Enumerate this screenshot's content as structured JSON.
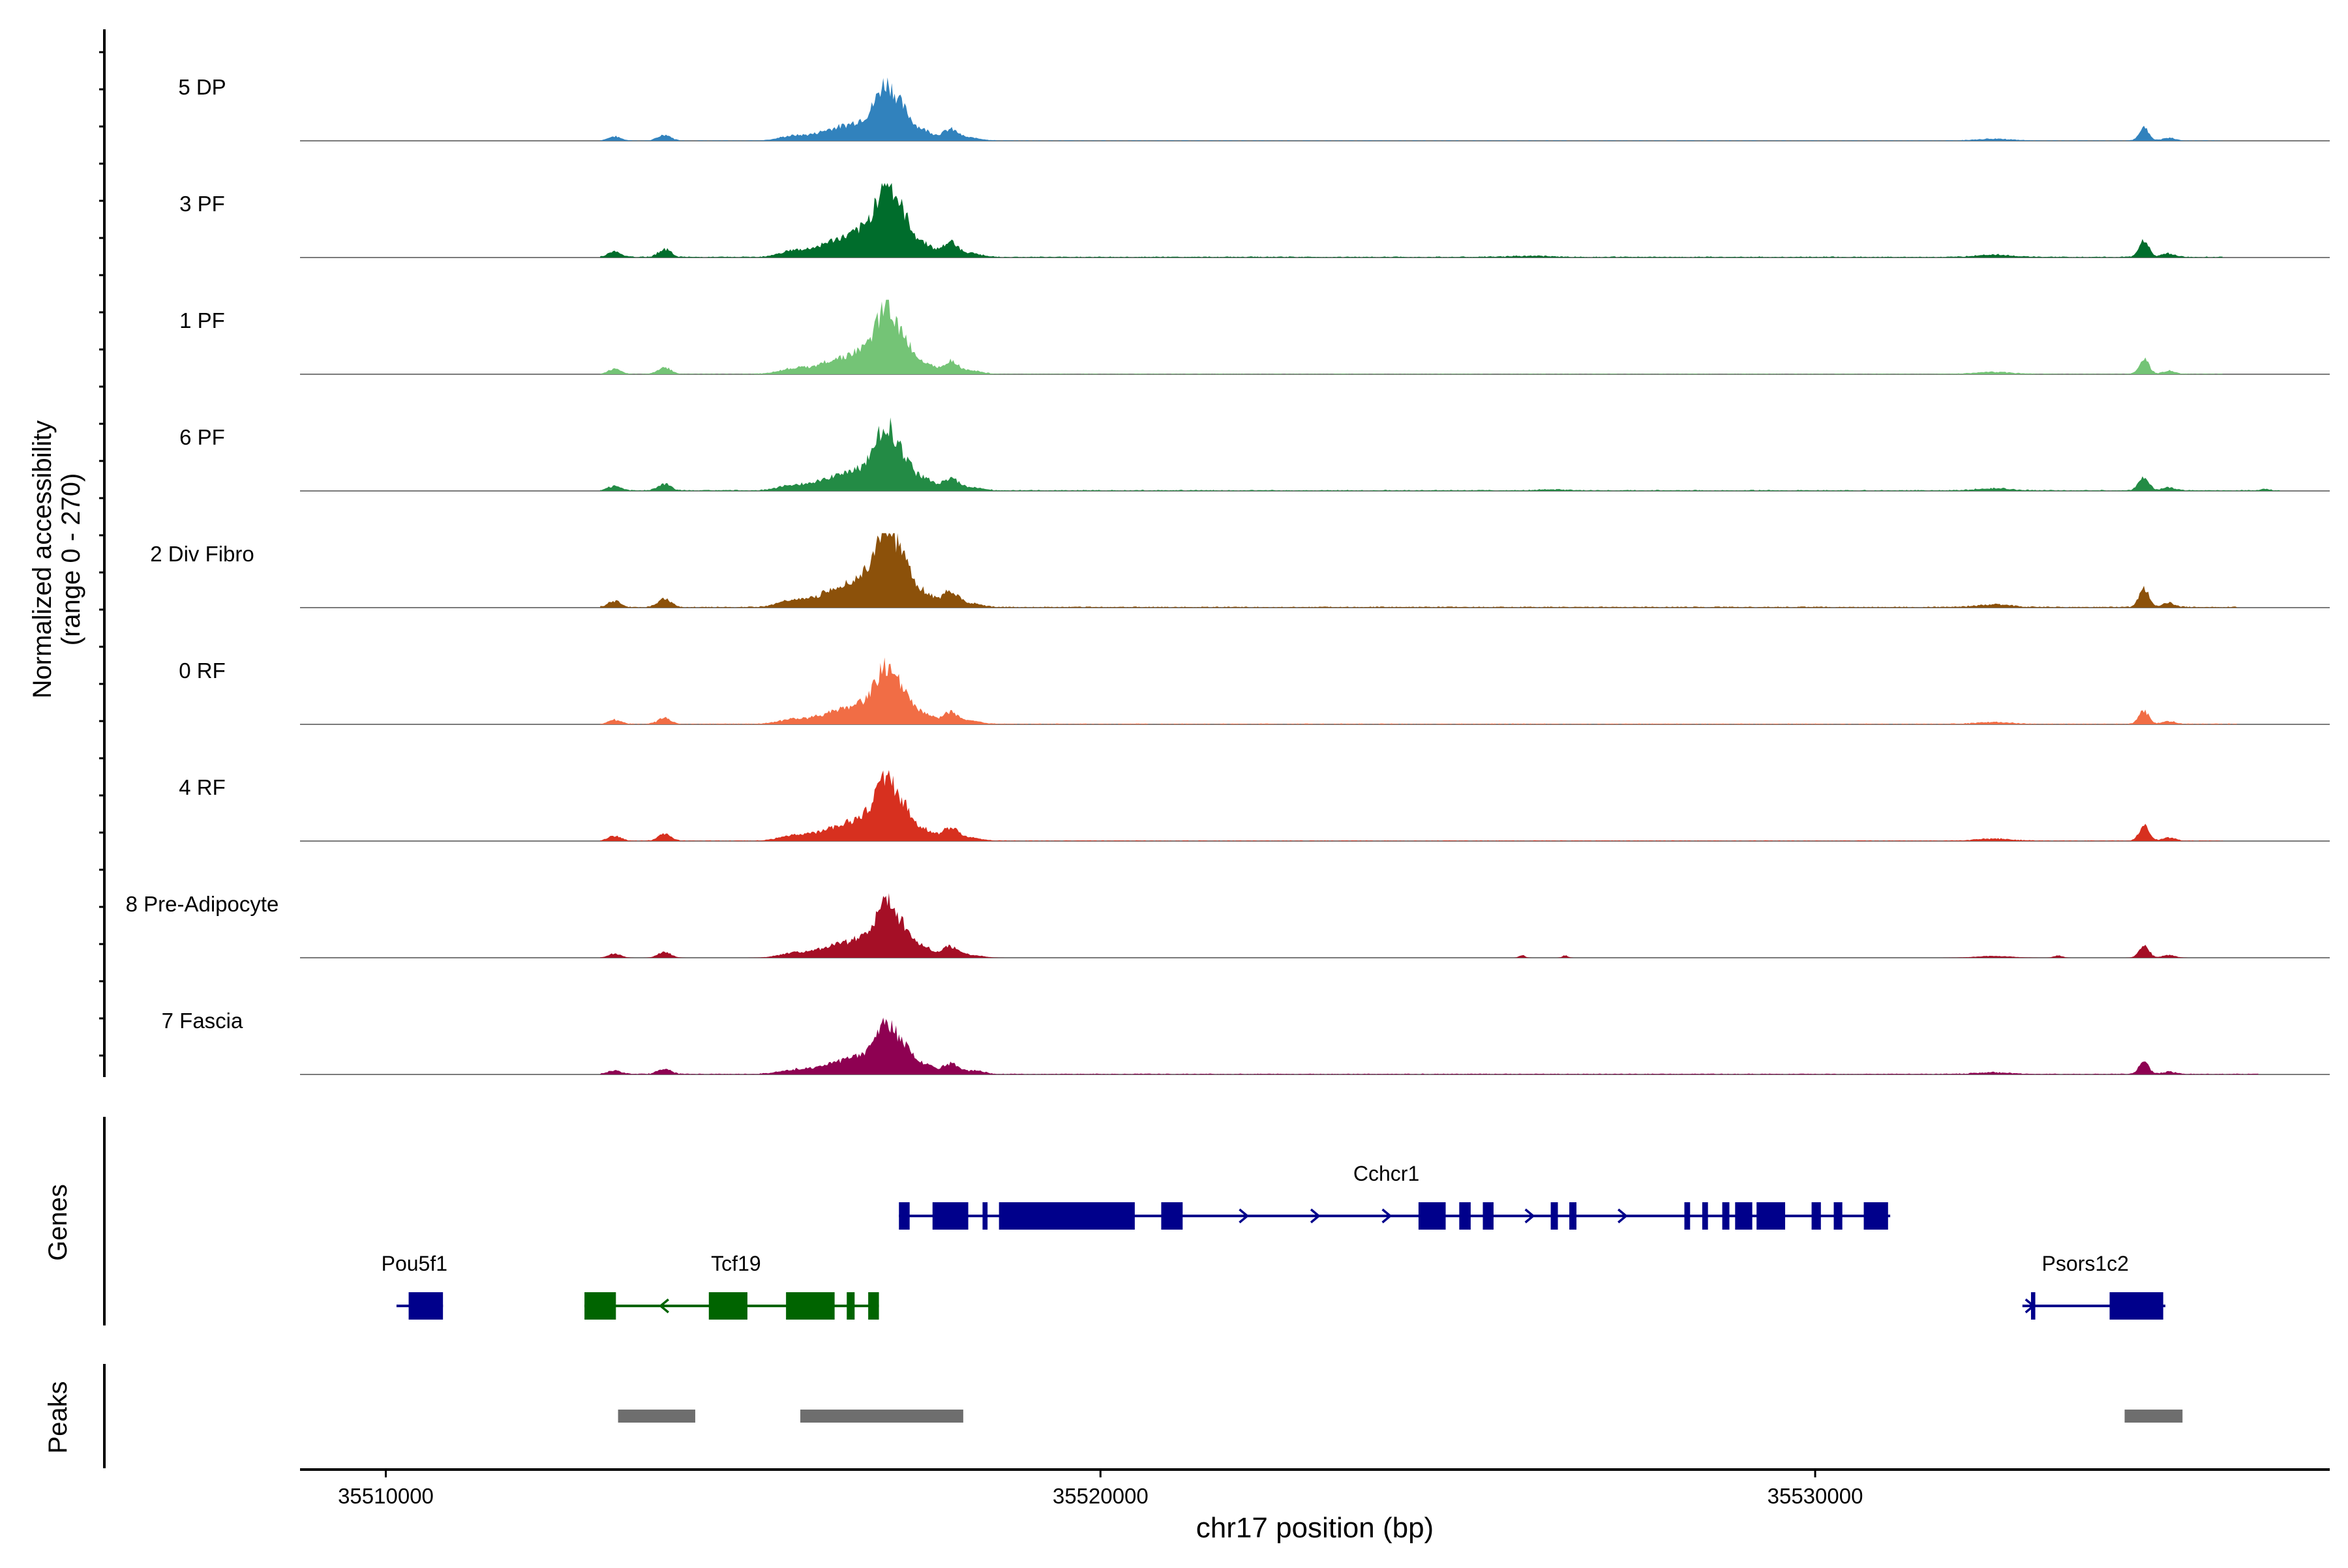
{
  "chart_data": {
    "type": "area",
    "title": "",
    "chromosome": "chr17",
    "xlabel": "chr17 position (bp)",
    "ylabel_line1": "Normalized accessibility",
    "ylabel_line2": "(range 0 - 270)",
    "ylim": [
      0,
      270
    ],
    "xlim": [
      35508800,
      35537200
    ],
    "x_ticks": [
      35510000,
      35520000,
      35530000
    ],
    "x_tick_labels": [
      "35510000",
      "35520000",
      "35530000"
    ],
    "genes_label": "Genes",
    "peaks_label": "Peaks",
    "tracks": [
      {
        "name": "5 DP",
        "color": "#3182BD",
        "scale": 0.62,
        "noise": 0.012,
        "extra_peaks": [],
        "tail_end": 35535700
      },
      {
        "name": "3 PF",
        "color": "#006D2C",
        "scale": 0.83,
        "noise": 0.018,
        "extra_peaks": [
          [
            35526000,
            0.02,
            300
          ]
        ],
        "tail_end": 35535700
      },
      {
        "name": "1 PF",
        "color": "#74C476",
        "scale": 0.72,
        "noise": 0.012,
        "extra_peaks": [],
        "tail_end": 35535700
      },
      {
        "name": "6 PF",
        "color": "#238B45",
        "scale": 0.7,
        "noise": 0.022,
        "extra_peaks": [
          [
            35536300,
            0.03,
            60
          ],
          [
            35526300,
            0.02,
            200
          ]
        ],
        "tail_end": 35536500
      },
      {
        "name": "2 Div Fibro",
        "color": "#8C510A",
        "scale": 0.92,
        "noise": 0.018,
        "extra_peaks": [],
        "tail_end": 35535900
      },
      {
        "name": "0 RF",
        "color": "#F16D45",
        "scale": 0.64,
        "noise": 0.018,
        "extra_peaks": [],
        "tail_end": 35535900
      },
      {
        "name": "4 RF",
        "color": "#D7301F",
        "scale": 0.71,
        "noise": 0.014,
        "extra_peaks": [],
        "tail_end": 35535700
      },
      {
        "name": "8 Pre-Adipocyte",
        "color": "#A50F26",
        "scale": 0.63,
        "noise": 0.0,
        "extra_peaks": [
          [
            35525900,
            0.06,
            40
          ],
          [
            35526500,
            0.05,
            40
          ],
          [
            35533400,
            0.05,
            60
          ]
        ],
        "tail_end": 35535300
      },
      {
        "name": "7 Fascia",
        "color": "#8E0152",
        "scale": 0.58,
        "noise": 0.022,
        "extra_peaks": [
          [
            35518300,
            0.04,
            80
          ]
        ],
        "tail_end": 35536200
      }
    ],
    "profile_peaks": [
      [
        35513200,
        0.09,
        90
      ],
      [
        35513900,
        0.13,
        90
      ],
      [
        35515700,
        0.1,
        200
      ],
      [
        35516300,
        0.26,
        250
      ],
      [
        35516750,
        0.4,
        200
      ],
      [
        35517000,
        1.0,
        130
      ],
      [
        35517250,
        0.55,
        130
      ],
      [
        35517550,
        0.2,
        120
      ],
      [
        35517900,
        0.24,
        110
      ],
      [
        35518200,
        0.06,
        150
      ],
      [
        35532500,
        0.04,
        250
      ],
      [
        35534600,
        0.28,
        70
      ],
      [
        35534950,
        0.06,
        90
      ]
    ],
    "genes": [
      {
        "name": "Cchcr1",
        "strand": "+",
        "color": "#00008B",
        "start": 35517180,
        "end": 35531050,
        "exons": [
          [
            35517180,
            35517330
          ],
          [
            35517650,
            35518150
          ],
          [
            35518350,
            35518420
          ],
          [
            35518580,
            35520480
          ],
          [
            35520850,
            35521150
          ],
          [
            35524450,
            35524830
          ],
          [
            35525020,
            35525180
          ],
          [
            35525350,
            35525500
          ],
          [
            35526300,
            35526400
          ],
          [
            35526560,
            35526660
          ],
          [
            35528170,
            35528250
          ],
          [
            35528420,
            35528500
          ],
          [
            35528700,
            35528800
          ],
          [
            35528880,
            35529120
          ],
          [
            35529180,
            35529580
          ],
          [
            35529950,
            35530080
          ],
          [
            35530260,
            35530380
          ],
          [
            35530680,
            35531020
          ]
        ],
        "arrows": [
          35522000,
          35523000,
          35524000,
          35526000,
          35527300
        ],
        "label_x": 35524000,
        "row": 1
      },
      {
        "name": "Pou5f1",
        "strand": "+",
        "color": "#00008B",
        "start": 35510150,
        "end": 35510800,
        "exons": [
          [
            35510320,
            35510800
          ]
        ],
        "arrows": [],
        "label_x": 35510400,
        "row": 2
      },
      {
        "name": "Tcf19",
        "strand": "-",
        "color": "#006400",
        "start": 35512780,
        "end": 35516900,
        "exons": [
          [
            35512780,
            35513220
          ],
          [
            35514520,
            35515060
          ],
          [
            35515600,
            35516280
          ],
          [
            35516450,
            35516560
          ],
          [
            35516750,
            35516900
          ]
        ],
        "arrows": [
          35513900
        ],
        "label_x": 35514900,
        "row": 2
      },
      {
        "name": "Psors1c2",
        "strand": "+",
        "color": "#00008B",
        "start": 35532900,
        "end": 35534900,
        "exons": [
          [
            35533020,
            35533080
          ],
          [
            35534120,
            35534870
          ]
        ],
        "arrows": [
          35533000
        ],
        "label_x": 35533780,
        "row": 2
      }
    ],
    "peaks": [
      {
        "start": 35513250,
        "end": 35514330
      },
      {
        "start": 35515800,
        "end": 35518080
      },
      {
        "start": 35534330,
        "end": 35535140
      }
    ]
  }
}
